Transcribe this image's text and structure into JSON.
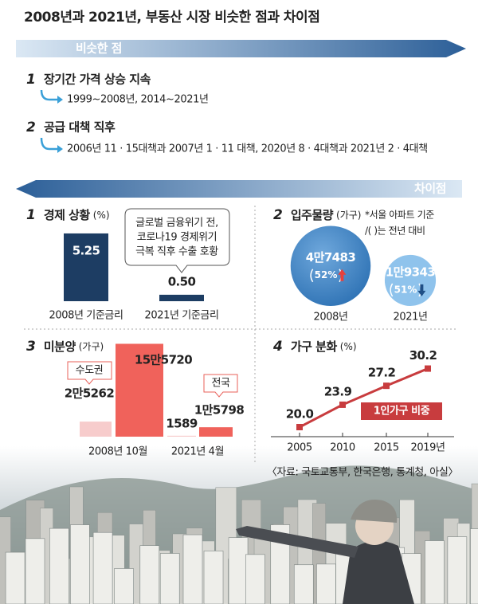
{
  "title": "2008년과 2021년, 부동산 시장 비슷한 점과 차이점",
  "similar": {
    "label": "비슷한 점",
    "items": [
      {
        "number": "1",
        "title": "장기간 가격 상승 지속",
        "detail": "1999~2008년, 2014~2021년"
      },
      {
        "number": "2",
        "title": "공급 대책 직후",
        "detail": "2006년 11 · 15대책과 2007년 1 · 11 대책, 2020년 8 · 4대책과 2021년 2 · 4대책"
      }
    ]
  },
  "different": {
    "label": "차이점"
  },
  "chart_data": [
    {
      "type": "bar",
      "number": "1",
      "title": "경제 상황",
      "unit": "(%)",
      "categories": [
        "2008년 기준금리",
        "2021년 기준금리"
      ],
      "values": [
        5.25,
        0.5
      ],
      "value_labels": [
        "5.25",
        "0.50"
      ],
      "color": "#1d3d63",
      "annotation": [
        "글로벌 금융위기 전,",
        "코로나19 경제위기",
        "극복 직후 수출 호황"
      ]
    },
    {
      "type": "bubble",
      "number": "2",
      "title": "입주물량",
      "unit": "(가구)",
      "notes": [
        "*서울 아파트 기준",
        "/(  )는 전년 대비"
      ],
      "categories": [
        "2008년",
        "2021년"
      ],
      "values": [
        47483,
        19343
      ],
      "value_labels": [
        "4만7483",
        "1만9343"
      ],
      "changes": [
        52,
        51
      ],
      "change_labels": [
        "52%",
        "51%"
      ],
      "change_directions": [
        "up",
        "down"
      ],
      "colors": [
        "#3b82c4",
        "#8fc3ec"
      ]
    },
    {
      "type": "grouped_bar",
      "number": "3",
      "title": "미분양",
      "unit": "(가구)",
      "categories": [
        "2008년 10월",
        "2021년 4월"
      ],
      "series": [
        {
          "name": "수도권",
          "color": "#f7cccc",
          "values": [
            25262,
            1589
          ],
          "value_labels": [
            "2만5262",
            "1589"
          ]
        },
        {
          "name": "전국",
          "color": "#f0625b",
          "values": [
            155720,
            15798
          ],
          "value_labels": [
            "15만5720",
            "1만5798"
          ]
        }
      ]
    },
    {
      "type": "line",
      "number": "4",
      "title": "가구 분화",
      "unit": "(%)",
      "x": [
        "2005",
        "2010",
        "2015",
        "2019년"
      ],
      "series": [
        {
          "name": "1인가구 비중",
          "color": "#c83c3e",
          "values": [
            20.0,
            23.9,
            27.2,
            30.2
          ],
          "value_labels": [
            "20.0",
            "23.9",
            "27.2",
            "30.2"
          ]
        }
      ]
    }
  ],
  "source": "〈자료: 국토교통부, 한국은행, 통계청, 아실〉"
}
